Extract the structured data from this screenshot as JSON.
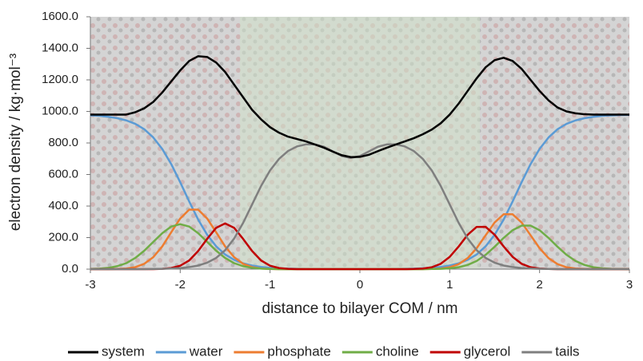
{
  "chart_data": {
    "type": "line",
    "xlabel": "distance to bilayer COM / nm",
    "ylabel": "electron density / kg·mol⁻³",
    "xlim": [
      -3,
      3
    ],
    "xticks": [
      -3,
      -2,
      -1,
      0,
      1,
      2,
      3
    ],
    "ylim": [
      0,
      1600
    ],
    "yticks": [
      {
        "value": 0,
        "label": "0.0"
      },
      {
        "value": 200,
        "label": "200.0"
      },
      {
        "value": 400,
        "label": "400.0"
      },
      {
        "value": 600,
        "label": "600.0"
      },
      {
        "value": 800,
        "label": "800.0"
      },
      {
        "value": 1000,
        "label": "1000.0"
      },
      {
        "value": 1200,
        "label": "1200.0"
      },
      {
        "value": 1400,
        "label": "1400.0"
      },
      {
        "value": 1600,
        "label": "1600.0"
      }
    ],
    "legend": "bottom",
    "x": [
      -3.0,
      -2.9,
      -2.8,
      -2.7,
      -2.6,
      -2.5,
      -2.4,
      -2.3,
      -2.2,
      -2.1,
      -2.0,
      -1.9,
      -1.8,
      -1.7,
      -1.6,
      -1.5,
      -1.4,
      -1.3,
      -1.2,
      -1.1,
      -1.0,
      -0.9,
      -0.8,
      -0.7,
      -0.6,
      -0.5,
      -0.4,
      -0.3,
      -0.2,
      -0.1,
      0.0,
      0.1,
      0.2,
      0.3,
      0.4,
      0.5,
      0.6,
      0.7,
      0.8,
      0.9,
      1.0,
      1.1,
      1.2,
      1.3,
      1.4,
      1.5,
      1.6,
      1.7,
      1.8,
      1.9,
      2.0,
      2.1,
      2.2,
      2.3,
      2.4,
      2.5,
      2.6,
      2.7,
      2.8,
      2.9,
      3.0
    ],
    "series": [
      {
        "name": "system",
        "color": "#000000",
        "values": [
          980,
          980,
          980,
          980,
          980,
          995,
          1020,
          1060,
          1120,
          1190,
          1260,
          1320,
          1350,
          1345,
          1310,
          1250,
          1170,
          1090,
          1010,
          950,
          900,
          865,
          840,
          825,
          810,
          790,
          770,
          745,
          722,
          710,
          712,
          725,
          748,
          770,
          790,
          810,
          830,
          855,
          885,
          925,
          980,
          1050,
          1130,
          1210,
          1280,
          1325,
          1340,
          1320,
          1270,
          1200,
          1130,
          1070,
          1025,
          1000,
          988,
          982,
          980,
          980,
          980,
          980,
          980
        ]
      },
      {
        "name": "water",
        "color": "#5b9bd5",
        "values": [
          975,
          972,
          966,
          957,
          943,
          921,
          887,
          835,
          762,
          666,
          551,
          429,
          314,
          218,
          145,
          93,
          59,
          37,
          23,
          14,
          8,
          5,
          3,
          2,
          1,
          0,
          0,
          0,
          0,
          0,
          0,
          0,
          0,
          0,
          1,
          2,
          3,
          5,
          8,
          14,
          23,
          37,
          59,
          93,
          145,
          218,
          314,
          429,
          551,
          666,
          762,
          835,
          887,
          921,
          943,
          957,
          966,
          972,
          975,
          977,
          978
        ]
      },
      {
        "name": "phosphate",
        "color": "#ed7d31",
        "values": [
          0,
          0,
          0,
          1,
          4,
          13,
          34,
          76,
          144,
          234,
          321,
          377,
          377,
          321,
          234,
          144,
          76,
          34,
          13,
          4,
          1,
          0,
          0,
          0,
          0,
          0,
          0,
          0,
          0,
          0,
          0,
          0,
          0,
          0,
          0,
          0,
          0,
          0,
          1,
          4,
          12,
          32,
          70,
          133,
          215,
          296,
          348,
          348,
          296,
          215,
          133,
          70,
          32,
          12,
          4,
          1,
          0,
          0,
          0,
          0,
          0
        ]
      },
      {
        "name": "choline",
        "color": "#70ad47",
        "values": [
          1,
          3,
          8,
          19,
          38,
          71,
          117,
          173,
          228,
          270,
          285,
          270,
          228,
          173,
          117,
          71,
          38,
          19,
          8,
          3,
          1,
          0,
          0,
          0,
          0,
          0,
          0,
          0,
          0,
          0,
          0,
          0,
          0,
          0,
          0,
          0,
          0,
          0,
          1,
          2,
          5,
          12,
          27,
          52,
          91,
          142,
          198,
          247,
          276,
          276,
          247,
          198,
          142,
          91,
          52,
          27,
          12,
          5,
          2,
          1,
          0
        ]
      },
      {
        "name": "glycerol",
        "color": "#c00000",
        "values": [
          0,
          0,
          0,
          0,
          0,
          0,
          0,
          0,
          2,
          7,
          22,
          55,
          115,
          192,
          262,
          290,
          262,
          192,
          115,
          55,
          22,
          7,
          2,
          0,
          0,
          0,
          0,
          0,
          0,
          0,
          0,
          0,
          0,
          0,
          0,
          0,
          1,
          4,
          12,
          34,
          78,
          144,
          218,
          268,
          268,
          218,
          144,
          78,
          34,
          12,
          4,
          1,
          0,
          0,
          0,
          0,
          0,
          0,
          0,
          0,
          0
        ]
      },
      {
        "name": "tails",
        "color": "#7f7f7f",
        "values": [
          0,
          0,
          0,
          0,
          0,
          0,
          0,
          1,
          2,
          4,
          7,
          13,
          23,
          41,
          71,
          120,
          194,
          293,
          410,
          527,
          626,
          699,
          749,
          778,
          791,
          791,
          776,
          746,
          717,
          705,
          717,
          746,
          776,
          791,
          791,
          778,
          749,
          699,
          626,
          527,
          410,
          293,
          194,
          120,
          71,
          41,
          23,
          13,
          7,
          4,
          2,
          1,
          0,
          0,
          0,
          0,
          0,
          0,
          0,
          0,
          0
        ]
      }
    ]
  }
}
